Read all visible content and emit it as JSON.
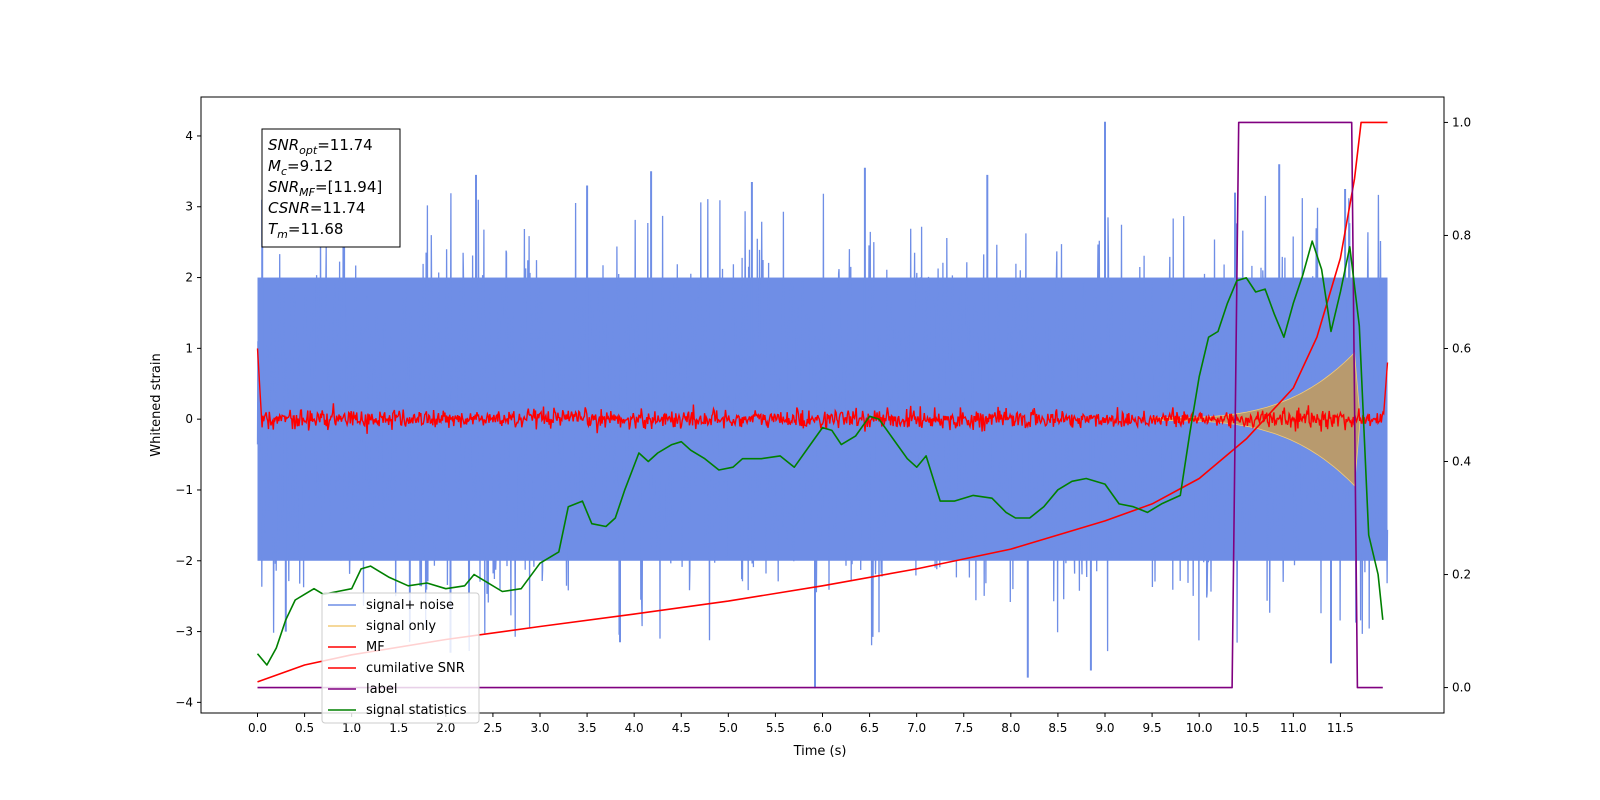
{
  "chart_data": {
    "type": "line",
    "xlabel": "Time (s)",
    "ylabel": "Whitened strain",
    "xlim": [
      -0.6,
      12.6
    ],
    "ylim": [
      -4.15,
      4.55
    ],
    "y2lim": [
      -0.045,
      1.045
    ],
    "x_ticks": [
      0.0,
      0.5,
      1.0,
      1.5,
      2.0,
      2.5,
      3.0,
      3.5,
      4.0,
      4.5,
      5.0,
      5.5,
      6.0,
      6.5,
      7.0,
      7.5,
      8.0,
      8.5,
      9.0,
      9.5,
      10.0,
      10.5,
      11.0,
      11.5
    ],
    "x_tick_labels": [
      "0.0",
      "0.5",
      "1.0",
      "1.5",
      "2.0",
      "2.5",
      "3.0",
      "3.5",
      "4.0",
      "4.5",
      "5.0",
      "5.5",
      "6.0",
      "6.5",
      "7.0",
      "7.5",
      "8.0",
      "8.5",
      "9.0",
      "9.5",
      "10.0",
      "10.5",
      "11.0",
      "11.5"
    ],
    "y_ticks": [
      4,
      3,
      2,
      1,
      0,
      -1,
      -2,
      -3,
      -4
    ],
    "y_tick_labels": [
      "4",
      "3",
      "2",
      "1",
      "0",
      "−1",
      "−2",
      "−3",
      "−4"
    ],
    "y2_ticks": [
      1.0,
      0.8,
      0.6,
      0.4,
      0.2,
      0.0
    ],
    "y2_tick_labels": [
      "1.0",
      "0.8",
      "0.6",
      "0.4",
      "0.2",
      "0.0"
    ],
    "grid": false,
    "legend_position": "lower-left",
    "colors": {
      "signal_noise": "#6f8ee6",
      "signal_only": "#f2cb78",
      "signal_overlap": "#b89a6e",
      "mf": "#ff0000",
      "cumulative_snr": "#ff0000",
      "label": "#800080",
      "signal_statistics": "#008000"
    },
    "series": [
      {
        "name": "signal+ noise",
        "axis": "left",
        "style": "dense-noise",
        "t_range": [
          0.0,
          12.0
        ],
        "envelope_upper": 2.0,
        "envelope_lower": -2.0,
        "peak_samples": [
          [
            0.05,
            3.1
          ],
          [
            0.92,
            3.5
          ],
          [
            2.32,
            3.45
          ],
          [
            3.5,
            3.3
          ],
          [
            4.18,
            3.5
          ],
          [
            5.25,
            3.35
          ],
          [
            6.45,
            3.55
          ],
          [
            7.75,
            3.45
          ],
          [
            9.0,
            4.2
          ],
          [
            10.38,
            3.2
          ],
          [
            10.85,
            3.6
          ],
          [
            11.55,
            3.25
          ],
          [
            2.05,
            -3.3
          ],
          [
            5.92,
            -3.8
          ],
          [
            8.18,
            -3.65
          ],
          [
            8.85,
            -3.55
          ],
          [
            11.4,
            -3.45
          ],
          [
            0.3,
            -3.0
          ],
          [
            3.85,
            -3.15
          ]
        ]
      },
      {
        "name": "signal only",
        "axis": "left",
        "style": "chirp-band",
        "start_time": 9.5,
        "end_time": 11.65,
        "peak_amplitude": 0.92
      },
      {
        "name": "MF",
        "axis": "left",
        "style": "noise-band",
        "t_range": [
          0.0,
          12.0
        ],
        "amplitude": 0.12,
        "start_value": 1.0,
        "end_value": 0.8
      },
      {
        "name": "cumilative SNR",
        "axis": "right",
        "points": [
          [
            0.0,
            0.01
          ],
          [
            0.5,
            0.04
          ],
          [
            1.0,
            0.058
          ],
          [
            2.0,
            0.085
          ],
          [
            3.0,
            0.108
          ],
          [
            4.0,
            0.13
          ],
          [
            5.0,
            0.153
          ],
          [
            6.0,
            0.18
          ],
          [
            7.0,
            0.21
          ],
          [
            8.0,
            0.245
          ],
          [
            8.5,
            0.27
          ],
          [
            9.0,
            0.295
          ],
          [
            9.5,
            0.325
          ],
          [
            10.0,
            0.37
          ],
          [
            10.5,
            0.44
          ],
          [
            11.0,
            0.53
          ],
          [
            11.25,
            0.62
          ],
          [
            11.5,
            0.76
          ],
          [
            11.65,
            0.9
          ],
          [
            11.72,
            1.0
          ],
          [
            12.0,
            1.0
          ]
        ]
      },
      {
        "name": "label",
        "axis": "right",
        "points": [
          [
            0.0,
            0.0
          ],
          [
            10.35,
            0.0
          ],
          [
            10.42,
            1.0
          ],
          [
            11.62,
            1.0
          ],
          [
            11.68,
            0.0
          ],
          [
            11.95,
            0.0
          ]
        ]
      },
      {
        "name": "signal statistics",
        "axis": "right",
        "points": [
          [
            0.0,
            0.06
          ],
          [
            0.1,
            0.04
          ],
          [
            0.2,
            0.07
          ],
          [
            0.3,
            0.12
          ],
          [
            0.4,
            0.155
          ],
          [
            0.5,
            0.165
          ],
          [
            0.6,
            0.175
          ],
          [
            0.7,
            0.165
          ],
          [
            0.85,
            0.17
          ],
          [
            1.0,
            0.175
          ],
          [
            1.1,
            0.21
          ],
          [
            1.2,
            0.215
          ],
          [
            1.4,
            0.195
          ],
          [
            1.6,
            0.18
          ],
          [
            1.8,
            0.185
          ],
          [
            2.0,
            0.175
          ],
          [
            2.2,
            0.18
          ],
          [
            2.3,
            0.2
          ],
          [
            2.4,
            0.19
          ],
          [
            2.6,
            0.17
          ],
          [
            2.8,
            0.175
          ],
          [
            3.0,
            0.22
          ],
          [
            3.2,
            0.24
          ],
          [
            3.3,
            0.32
          ],
          [
            3.45,
            0.33
          ],
          [
            3.55,
            0.29
          ],
          [
            3.7,
            0.285
          ],
          [
            3.8,
            0.3
          ],
          [
            3.9,
            0.35
          ],
          [
            4.05,
            0.415
          ],
          [
            4.15,
            0.4
          ],
          [
            4.25,
            0.415
          ],
          [
            4.4,
            0.43
          ],
          [
            4.5,
            0.435
          ],
          [
            4.6,
            0.42
          ],
          [
            4.75,
            0.405
          ],
          [
            4.9,
            0.385
          ],
          [
            5.05,
            0.39
          ],
          [
            5.15,
            0.405
          ],
          [
            5.35,
            0.405
          ],
          [
            5.55,
            0.41
          ],
          [
            5.7,
            0.39
          ],
          [
            5.85,
            0.425
          ],
          [
            6.0,
            0.46
          ],
          [
            6.1,
            0.455
          ],
          [
            6.2,
            0.43
          ],
          [
            6.35,
            0.445
          ],
          [
            6.5,
            0.48
          ],
          [
            6.6,
            0.475
          ],
          [
            6.75,
            0.44
          ],
          [
            6.9,
            0.405
          ],
          [
            7.0,
            0.39
          ],
          [
            7.1,
            0.41
          ],
          [
            7.25,
            0.33
          ],
          [
            7.4,
            0.33
          ],
          [
            7.6,
            0.34
          ],
          [
            7.8,
            0.335
          ],
          [
            7.95,
            0.31
          ],
          [
            8.05,
            0.3
          ],
          [
            8.2,
            0.3
          ],
          [
            8.35,
            0.32
          ],
          [
            8.5,
            0.35
          ],
          [
            8.65,
            0.365
          ],
          [
            8.8,
            0.37
          ],
          [
            9.0,
            0.36
          ],
          [
            9.15,
            0.325
          ],
          [
            9.3,
            0.32
          ],
          [
            9.45,
            0.31
          ],
          [
            9.6,
            0.325
          ],
          [
            9.8,
            0.34
          ],
          [
            9.9,
            0.45
          ],
          [
            10.0,
            0.55
          ],
          [
            10.1,
            0.62
          ],
          [
            10.2,
            0.63
          ],
          [
            10.3,
            0.68
          ],
          [
            10.4,
            0.72
          ],
          [
            10.5,
            0.725
          ],
          [
            10.6,
            0.7
          ],
          [
            10.7,
            0.705
          ],
          [
            10.8,
            0.66
          ],
          [
            10.9,
            0.62
          ],
          [
            11.0,
            0.68
          ],
          [
            11.1,
            0.73
          ],
          [
            11.2,
            0.79
          ],
          [
            11.3,
            0.74
          ],
          [
            11.4,
            0.63
          ],
          [
            11.5,
            0.7
          ],
          [
            11.6,
            0.78
          ],
          [
            11.7,
            0.64
          ],
          [
            11.8,
            0.27
          ],
          [
            11.9,
            0.2
          ],
          [
            11.95,
            0.12
          ]
        ]
      }
    ],
    "annotation_box": {
      "lines": [
        {
          "sym": "SNR",
          "sub": "opt",
          "value": "=11.74"
        },
        {
          "sym": "M",
          "sub": "c",
          "value": "=9.12"
        },
        {
          "sym": "SNR",
          "sub": "MF",
          "value": "=[11.94]"
        },
        {
          "sym": "CSNR",
          "sub": "",
          "value": "=11.74"
        },
        {
          "sym": "T",
          "sub": "m",
          "value": "=11.68"
        }
      ]
    }
  }
}
